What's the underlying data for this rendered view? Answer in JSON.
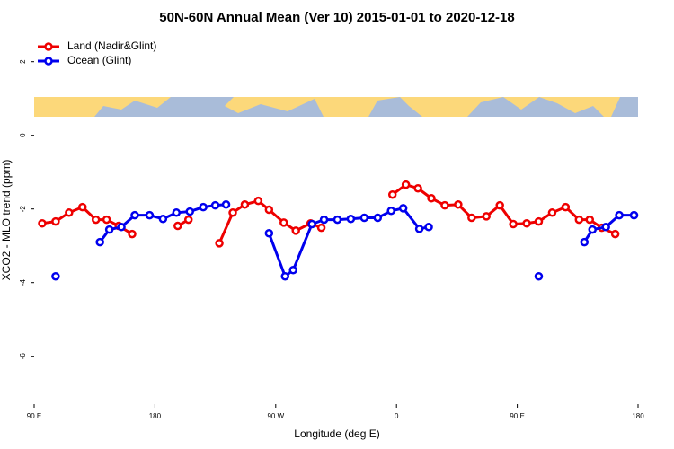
{
  "chart_data": {
    "type": "line",
    "title": "50N-60N Annual Mean (Ver 10)   2015-01-01 to 2020-12-18",
    "x_label": "Longitude (deg E)",
    "y_label": "XCO2 - MLO trend (ppm)",
    "xlim": [
      90,
      540
    ],
    "ylim": [
      -7.3,
      2.7
    ],
    "xticks": [
      {
        "value": 90,
        "label": "90 E"
      },
      180,
      {
        "value": 270,
        "label": "90 W"
      },
      {
        "value": 360,
        "label": "0"
      },
      {
        "value": 450,
        "label": "90 E"
      },
      {
        "value": 540,
        "label": "180"
      }
    ],
    "yticks": [
      2,
      0,
      -2,
      -4,
      -6
    ],
    "legend": "top-left",
    "series": [
      {
        "name": "Land (Nadir&Glint)",
        "color": "#ee0000",
        "x": [
          96,
          106,
          116,
          126,
          136,
          144,
          153,
          163,
          null,
          197,
          205,
          null,
          228,
          238,
          247,
          257,
          265,
          276,
          285,
          296,
          304,
          null,
          357,
          367,
          376,
          386,
          396,
          406,
          416,
          427,
          437,
          447,
          457,
          466,
          476,
          486,
          496,
          504,
          513,
          523
        ],
        "values": [
          -2.39,
          -2.34,
          -2.1,
          -1.95,
          -2.29,
          -2.29,
          -2.46,
          -2.68,
          null,
          -2.46,
          -2.29,
          null,
          -2.93,
          -2.1,
          -1.88,
          -1.78,
          -2.02,
          -2.37,
          -2.59,
          -2.39,
          -2.51,
          null,
          -1.61,
          -1.34,
          -1.44,
          -1.71,
          -1.9,
          -1.88,
          -2.24,
          -2.2,
          -1.9,
          -2.41,
          -2.39,
          -2.34,
          -2.1,
          -1.95,
          -2.29,
          -2.29,
          -2.51,
          -2.68
        ]
      },
      {
        "name": "Ocean (Glint)",
        "color": "#0000ee",
        "x": [
          106,
          null,
          139,
          146,
          155,
          165,
          176,
          186,
          196,
          206,
          216,
          225,
          233,
          null,
          265,
          277,
          283,
          297,
          306,
          316,
          326,
          336,
          346,
          356,
          365,
          377,
          384,
          null,
          466,
          null,
          500,
          506,
          516,
          526,
          537
        ],
        "values": [
          -3.83,
          null,
          -2.9,
          -2.56,
          -2.49,
          -2.17,
          -2.17,
          -2.27,
          -2.1,
          -2.07,
          -1.95,
          -1.9,
          -1.88,
          null,
          -2.66,
          -3.83,
          -3.66,
          -2.41,
          -2.29,
          -2.29,
          -2.27,
          -2.24,
          -2.24,
          -2.05,
          -1.98,
          -2.54,
          -2.49,
          null,
          -3.83,
          null,
          -2.9,
          -2.56,
          -2.49,
          -2.17,
          -2.17
        ]
      }
    ]
  }
}
